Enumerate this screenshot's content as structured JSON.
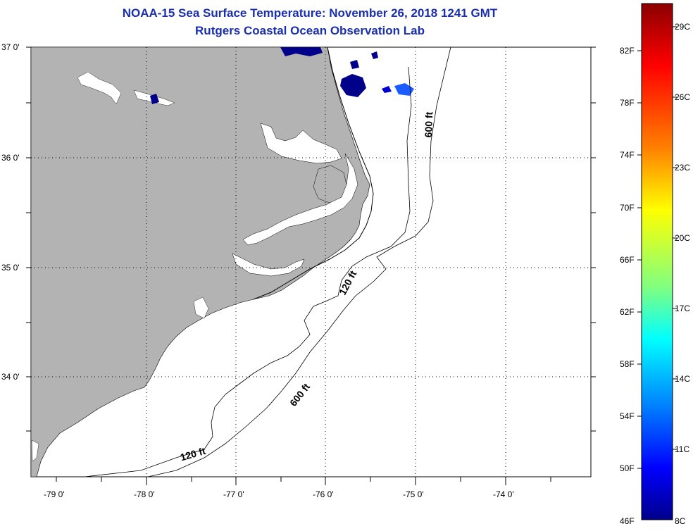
{
  "title_line1": "NOAA-15 Sea Surface Temperature:  November 26, 2018 1241 GMT",
  "title_line2": "Rutgers Coastal Ocean Observation Lab",
  "map": {
    "lon_ticks": [
      "-79 0'",
      "-78 0'",
      "-77 0'",
      "-76 0'",
      "-75 0'",
      "-74 0'"
    ],
    "lat_ticks": [
      "37 0'",
      "36 0'",
      "35 0'",
      "34 0'"
    ],
    "contour_labels": [
      "600 ft",
      "120 ft",
      "600 ft",
      "120 ft"
    ],
    "land_color": "#b3b3b3",
    "water_color": "#ffffff"
  },
  "colorbar": {
    "fahrenheit_labels": [
      "82F",
      "78F",
      "74F",
      "70F",
      "66F",
      "62F",
      "58F",
      "54F",
      "50F",
      "46F"
    ],
    "celsius_labels": [
      "29C",
      "26C",
      "23C",
      "20C",
      "17C",
      "14C",
      "11C",
      "8C"
    ],
    "colors": [
      "#8b0000",
      "#ff0000",
      "#ff8000",
      "#ffff00",
      "#80ff80",
      "#00ffff",
      "#0080ff",
      "#0000ff",
      "#00008b"
    ]
  }
}
